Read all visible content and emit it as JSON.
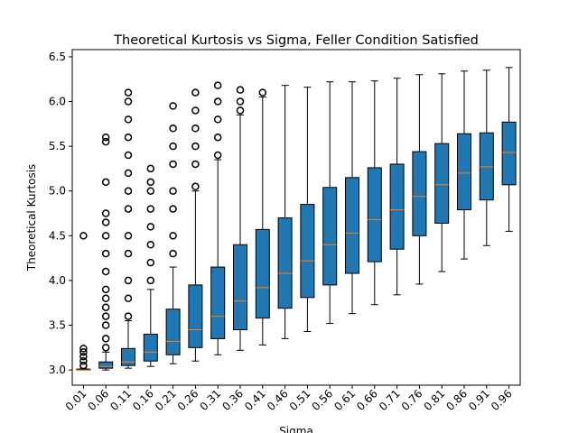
{
  "chart_data": {
    "type": "box",
    "title": "Theoretical Kurtosis vs Sigma, Feller Condition Satisfied",
    "xlabel": "Sigma",
    "ylabel": "Theoretical Kurtosis",
    "categories": [
      "0.01",
      "0.06",
      "0.11",
      "0.16",
      "0.21",
      "0.26",
      "0.31",
      "0.36",
      "0.41",
      "0.46",
      "0.51",
      "0.56",
      "0.61",
      "0.66",
      "0.71",
      "0.76",
      "0.81",
      "0.86",
      "0.91",
      "0.96"
    ],
    "color": "#1f77b4",
    "median_color": "#ff7f0e",
    "whislo": [
      3.0,
      3.0,
      3.02,
      3.04,
      3.07,
      3.1,
      3.17,
      3.22,
      3.28,
      3.35,
      3.43,
      3.52,
      3.63,
      3.73,
      3.84,
      3.96,
      4.1,
      4.24,
      4.39,
      4.55
    ],
    "q1": [
      3.0,
      3.02,
      3.05,
      3.1,
      3.17,
      3.25,
      3.35,
      3.45,
      3.58,
      3.69,
      3.81,
      3.95,
      4.08,
      4.21,
      4.35,
      4.5,
      4.64,
      4.79,
      4.9,
      5.07
    ],
    "med": [
      3.0,
      3.04,
      3.09,
      3.2,
      3.32,
      3.45,
      3.6,
      3.77,
      3.92,
      4.08,
      4.22,
      4.4,
      4.53,
      4.68,
      4.79,
      4.94,
      5.07,
      5.2,
      5.27,
      5.43
    ],
    "q3": [
      3.01,
      3.09,
      3.24,
      3.4,
      3.68,
      3.95,
      4.15,
      4.4,
      4.57,
      4.7,
      4.85,
      5.04,
      5.15,
      5.26,
      5.3,
      5.44,
      5.53,
      5.64,
      5.65,
      5.77
    ],
    "whishi": [
      3.02,
      3.2,
      3.55,
      3.9,
      4.15,
      5.0,
      5.35,
      5.85,
      6.05,
      6.18,
      6.16,
      6.22,
      6.22,
      6.23,
      6.26,
      6.3,
      6.31,
      6.34,
      6.35,
      6.38
    ],
    "fliers": [
      [
        3.05,
        3.1,
        3.15,
        3.2,
        3.24,
        4.5
      ],
      [
        3.25,
        3.35,
        3.5,
        3.6,
        3.7,
        3.8,
        3.9,
        4.1,
        4.3,
        4.5,
        4.65,
        4.75,
        5.1,
        5.55,
        5.6
      ],
      [
        3.6,
        3.8,
        4.0,
        4.3,
        4.5,
        4.8,
        5.0,
        5.2,
        5.4,
        5.6,
        5.8,
        6.0,
        6.1
      ],
      [
        4.0,
        4.2,
        4.4,
        4.6,
        4.8,
        5.0,
        5.1,
        5.25
      ],
      [
        4.3,
        4.5,
        4.8,
        5.0,
        5.3,
        5.5,
        5.7,
        5.95
      ],
      [
        5.05,
        5.3,
        5.5,
        5.7,
        5.9,
        6.1
      ],
      [
        5.4,
        5.6,
        5.8,
        6.0,
        6.18
      ],
      [
        5.9,
        6.0,
        6.13
      ],
      [
        6.1
      ],
      [],
      [],
      [],
      [],
      [],
      [],
      [],
      [],
      [],
      [],
      []
    ],
    "ylim": [
      2.83,
      6.58
    ],
    "yticks": [
      {
        "value": 3.0,
        "label": "3.0"
      },
      3.5,
      {
        "value": 4.0,
        "label": "4.0"
      },
      4.5,
      {
        "value": 5.0,
        "label": "5.0"
      },
      5.5,
      {
        "value": 6.0,
        "label": "6.0"
      },
      6.5
    ],
    "grid": false
  }
}
